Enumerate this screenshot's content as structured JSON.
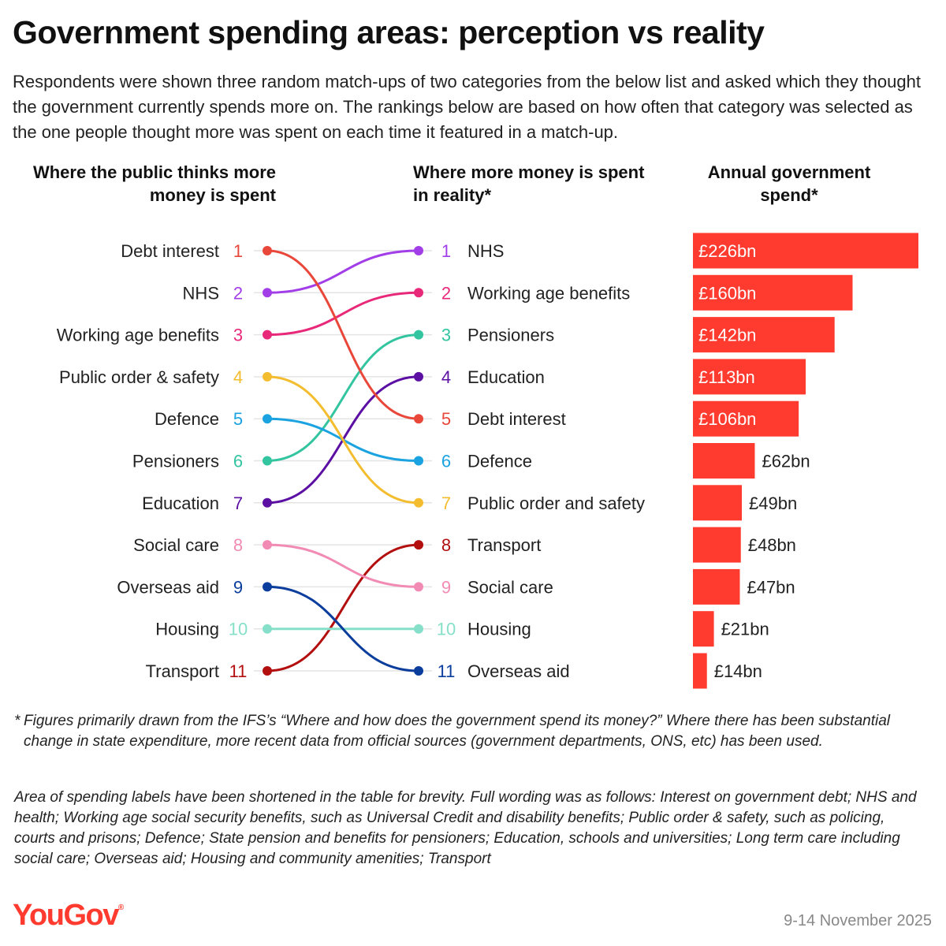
{
  "title": "Government spending areas: perception vs reality",
  "subtitle": "Respondents were shown three random match-ups of two categories from the below list and asked which they thought the government currently spends more on. The rankings below are based on how often that category was selected as the one people thought more was spent on each time it featured in a match-up.",
  "headers": {
    "public": "Where the public thinks more money is spent",
    "reality": "Where more money is spent in reality*",
    "spend": "Annual government spend*"
  },
  "footnote_star": "*",
  "footnote": "Figures primarily drawn from the IFS’s “Where and how does the government spend its money?” Where there has been substantial change in state expenditure, more recent data from official sources (government departments, ONS, etc) has been used.",
  "footnote2": "Area of spending labels have been shortened in the table for brevity. Full wording was as follows: Interest on government debt; NHS and health; Working age social security benefits, such as Universal Credit and disability benefits; Public order & safety, such as policing, courts and prisons; Defence; State pension and benefits for pensioners; Education, schools and universities; Long term care including social care; Overseas aid; Housing and community amenities; Transport",
  "logo": "YouGov",
  "logo_mark": "®",
  "date": "9-14 November 2025",
  "colors": {
    "bar": "#ff3b2f"
  },
  "chart_data": {
    "type": "slope-bar",
    "public_ranking": [
      {
        "rank": 1,
        "label": "Debt interest",
        "color": "#e8473a"
      },
      {
        "rank": 2,
        "label": "NHS",
        "color": "#a23ee8"
      },
      {
        "rank": 3,
        "label": "Working age benefits",
        "color": "#e8297a"
      },
      {
        "rank": 4,
        "label": "Public order & safety",
        "color": "#f3bd2f"
      },
      {
        "rank": 5,
        "label": "Defence",
        "color": "#1aa3e0"
      },
      {
        "rank": 6,
        "label": "Pensioners",
        "color": "#33c4a0"
      },
      {
        "rank": 7,
        "label": "Education",
        "color": "#5c0fa3"
      },
      {
        "rank": 8,
        "label": "Social care",
        "color": "#f28bb4"
      },
      {
        "rank": 9,
        "label": "Overseas aid",
        "color": "#0b3d9c"
      },
      {
        "rank": 10,
        "label": "Housing",
        "color": "#86e0c9"
      },
      {
        "rank": 11,
        "label": "Transport",
        "color": "#b30f0f"
      }
    ],
    "reality_ranking": [
      {
        "rank": 1,
        "label": "NHS",
        "public_rank": 2,
        "color": "#a23ee8",
        "spend_bn": 226,
        "spend_label": "£226bn"
      },
      {
        "rank": 2,
        "label": "Working age benefits",
        "public_rank": 3,
        "color": "#e8297a",
        "spend_bn": 160,
        "spend_label": "£160bn"
      },
      {
        "rank": 3,
        "label": "Pensioners",
        "public_rank": 6,
        "color": "#33c4a0",
        "spend_bn": 142,
        "spend_label": "£142bn"
      },
      {
        "rank": 4,
        "label": "Education",
        "public_rank": 7,
        "color": "#5c0fa3",
        "spend_bn": 113,
        "spend_label": "£113bn"
      },
      {
        "rank": 5,
        "label": "Debt interest",
        "public_rank": 1,
        "color": "#e8473a",
        "spend_bn": 106,
        "spend_label": "£106bn"
      },
      {
        "rank": 6,
        "label": "Defence",
        "public_rank": 5,
        "color": "#1aa3e0",
        "spend_bn": 62,
        "spend_label": "£62bn"
      },
      {
        "rank": 7,
        "label": "Public order and safety",
        "public_rank": 4,
        "color": "#f3bd2f",
        "spend_bn": 49,
        "spend_label": "£49bn"
      },
      {
        "rank": 8,
        "label": "Transport",
        "public_rank": 11,
        "color": "#b30f0f",
        "spend_bn": 48,
        "spend_label": "£48bn"
      },
      {
        "rank": 9,
        "label": "Social care",
        "public_rank": 8,
        "color": "#f28bb4",
        "spend_bn": 47,
        "spend_label": "£47bn"
      },
      {
        "rank": 10,
        "label": "Housing",
        "public_rank": 10,
        "color": "#86e0c9",
        "spend_bn": 21,
        "spend_label": "£21bn"
      },
      {
        "rank": 11,
        "label": "Overseas aid",
        "public_rank": 9,
        "color": "#0b3d9c",
        "spend_bn": 14,
        "spend_label": "£14bn"
      }
    ],
    "spend_max_bn": 226
  }
}
